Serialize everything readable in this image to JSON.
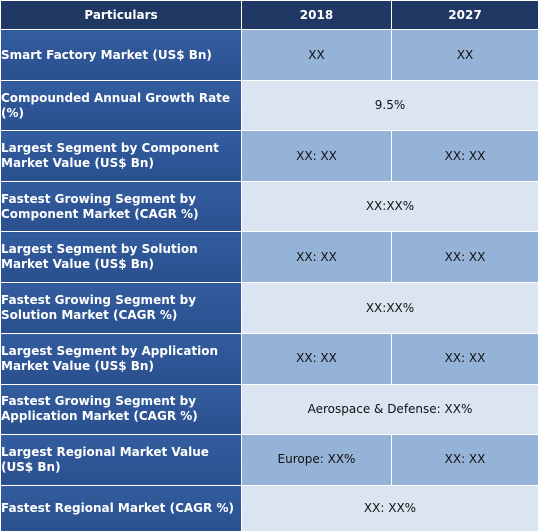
{
  "header": {
    "col_label": "Particulars",
    "col_2018": "2018",
    "col_2027": "2027"
  },
  "rows": [
    {
      "label": "Smart Factory Market (US$ Bn)",
      "v2018": "XX",
      "v2027": "XX"
    },
    {
      "label": "Compounded Annual Growth Rate (%)",
      "merged": "9.5%"
    },
    {
      "label": "Largest Segment by Component Market Value (US$ Bn)",
      "v2018": "XX: XX",
      "v2027": "XX: XX"
    },
    {
      "label": "Fastest Growing Segment by Component Market (CAGR %)",
      "merged": "XX:XX%"
    },
    {
      "label": "Largest Segment by Solution Market Value (US$ Bn)",
      "v2018": "XX: XX",
      "v2027": "XX: XX"
    },
    {
      "label": "Fastest Growing Segment by Solution Market (CAGR %)",
      "merged": "XX:XX%"
    },
    {
      "label": "Largest Segment by Application Market Value (US$ Bn)",
      "v2018": "XX: XX",
      "v2027": "XX: XX"
    },
    {
      "label": "Fastest Growing Segment by Application Market (CAGR %)",
      "merged": "Aerospace & Defense: XX%"
    },
    {
      "label": "Largest Regional Market Value (US$ Bn)",
      "v2018": "Europe: XX%",
      "v2027": "XX: XX"
    },
    {
      "label": "Fastest Regional Market (CAGR %)",
      "merged": "XX: XX%"
    }
  ],
  "colors": {
    "header_bg": "#1f3864",
    "label_bg": "#2e5597",
    "value_mid_bg": "#95b3d7",
    "value_light_bg": "#dbe5f1"
  }
}
